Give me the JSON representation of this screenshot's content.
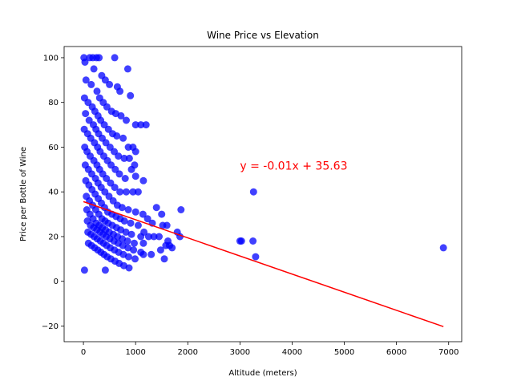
{
  "chart_data": {
    "type": "scatter",
    "title": "Wine Price vs Elevation",
    "xlabel": "Altitude (meters)",
    "ylabel": "Price per Bottle of Wine",
    "xlim": [
      -370,
      7250
    ],
    "ylim": [
      -27,
      105
    ],
    "xticks": [
      0,
      1000,
      2000,
      3000,
      4000,
      5000,
      6000,
      7000
    ],
    "xtick_labels": [
      "0",
      "1000",
      "2000",
      "3000",
      "4000",
      "5000",
      "6000",
      "7000"
    ],
    "yticks": [
      -20,
      0,
      20,
      40,
      60,
      80,
      100
    ],
    "ytick_labels": [
      "−20",
      "0",
      "20",
      "40",
      "60",
      "80",
      "100"
    ],
    "grid": false,
    "point_color": "#0000ff",
    "line_color": "#ff0000",
    "annotation": {
      "text": "y = -0.01x + 35.63",
      "x": 3000,
      "y": 50,
      "color": "#ff0000"
    },
    "regression": {
      "slope": -0.0081,
      "intercept": 35.63,
      "x_range": [
        0,
        6900
      ]
    },
    "points": [
      [
        10,
        100
      ],
      [
        120,
        100
      ],
      [
        180,
        100
      ],
      [
        250,
        100
      ],
      [
        300,
        100
      ],
      [
        600,
        100
      ],
      [
        850,
        95
      ],
      [
        30,
        98
      ],
      [
        200,
        95
      ],
      [
        350,
        92
      ],
      [
        420,
        90
      ],
      [
        500,
        88
      ],
      [
        650,
        87
      ],
      [
        700,
        85
      ],
      [
        900,
        83
      ],
      [
        50,
        90
      ],
      [
        150,
        88
      ],
      [
        260,
        85
      ],
      [
        310,
        82
      ],
      [
        380,
        80
      ],
      [
        450,
        78
      ],
      [
        540,
        76
      ],
      [
        620,
        75
      ],
      [
        720,
        74
      ],
      [
        820,
        72
      ],
      [
        1100,
        70
      ],
      [
        1200,
        70
      ],
      [
        1000,
        70
      ],
      [
        20,
        82
      ],
      [
        90,
        80
      ],
      [
        170,
        78
      ],
      [
        220,
        76
      ],
      [
        280,
        74
      ],
      [
        330,
        72
      ],
      [
        400,
        70
      ],
      [
        480,
        68
      ],
      [
        560,
        66
      ],
      [
        640,
        65
      ],
      [
        760,
        64
      ],
      [
        860,
        60
      ],
      [
        950,
        60
      ],
      [
        1000,
        58
      ],
      [
        40,
        75
      ],
      [
        110,
        72
      ],
      [
        190,
        70
      ],
      [
        240,
        68
      ],
      [
        290,
        66
      ],
      [
        360,
        64
      ],
      [
        430,
        62
      ],
      [
        510,
        60
      ],
      [
        590,
        58
      ],
      [
        670,
        56
      ],
      [
        780,
        55
      ],
      [
        880,
        55
      ],
      [
        980,
        52
      ],
      [
        920,
        50
      ],
      [
        15,
        68
      ],
      [
        80,
        66
      ],
      [
        140,
        64
      ],
      [
        210,
        62
      ],
      [
        270,
        60
      ],
      [
        320,
        58
      ],
      [
        390,
        56
      ],
      [
        460,
        54
      ],
      [
        530,
        52
      ],
      [
        610,
        50
      ],
      [
        690,
        48
      ],
      [
        800,
        46
      ],
      [
        1000,
        47
      ],
      [
        1150,
        45
      ],
      [
        25,
        60
      ],
      [
        70,
        58
      ],
      [
        130,
        56
      ],
      [
        200,
        54
      ],
      [
        260,
        52
      ],
      [
        310,
        50
      ],
      [
        370,
        48
      ],
      [
        440,
        46
      ],
      [
        520,
        44
      ],
      [
        600,
        42
      ],
      [
        700,
        40
      ],
      [
        820,
        40
      ],
      [
        950,
        40
      ],
      [
        1050,
        40
      ],
      [
        35,
        52
      ],
      [
        95,
        50
      ],
      [
        160,
        48
      ],
      [
        230,
        46
      ],
      [
        280,
        44
      ],
      [
        340,
        42
      ],
      [
        410,
        40
      ],
      [
        490,
        38
      ],
      [
        570,
        36
      ],
      [
        650,
        34
      ],
      [
        740,
        33
      ],
      [
        860,
        32
      ],
      [
        1000,
        31
      ],
      [
        1140,
        30
      ],
      [
        45,
        45
      ],
      [
        105,
        43
      ],
      [
        165,
        41
      ],
      [
        225,
        39
      ],
      [
        285,
        37
      ],
      [
        345,
        35
      ],
      [
        405,
        33
      ],
      [
        465,
        31
      ],
      [
        545,
        30
      ],
      [
        625,
        29
      ],
      [
        705,
        28
      ],
      [
        785,
        27
      ],
      [
        905,
        26
      ],
      [
        1050,
        25
      ],
      [
        55,
        38
      ],
      [
        115,
        36
      ],
      [
        175,
        34
      ],
      [
        235,
        32
      ],
      [
        295,
        30
      ],
      [
        355,
        28
      ],
      [
        415,
        27
      ],
      [
        475,
        26
      ],
      [
        555,
        25
      ],
      [
        635,
        24
      ],
      [
        715,
        23
      ],
      [
        815,
        22
      ],
      [
        920,
        21
      ],
      [
        1100,
        20
      ],
      [
        65,
        32
      ],
      [
        125,
        30
      ],
      [
        185,
        28
      ],
      [
        245,
        26
      ],
      [
        305,
        25
      ],
      [
        365,
        24
      ],
      [
        425,
        23
      ],
      [
        495,
        22
      ],
      [
        575,
        21
      ],
      [
        655,
        20
      ],
      [
        745,
        19
      ],
      [
        845,
        18
      ],
      [
        975,
        17
      ],
      [
        1150,
        17
      ],
      [
        75,
        27
      ],
      [
        135,
        25
      ],
      [
        195,
        24
      ],
      [
        255,
        23
      ],
      [
        315,
        22
      ],
      [
        375,
        21
      ],
      [
        435,
        20
      ],
      [
        505,
        19
      ],
      [
        585,
        18
      ],
      [
        665,
        17
      ],
      [
        755,
        16
      ],
      [
        855,
        15
      ],
      [
        960,
        14
      ],
      [
        1100,
        13
      ],
      [
        85,
        22
      ],
      [
        145,
        21
      ],
      [
        205,
        20
      ],
      [
        265,
        19
      ],
      [
        325,
        18
      ],
      [
        385,
        17
      ],
      [
        445,
        16
      ],
      [
        515,
        15
      ],
      [
        595,
        14
      ],
      [
        675,
        13
      ],
      [
        765,
        12
      ],
      [
        865,
        11
      ],
      [
        990,
        10
      ],
      [
        1150,
        12
      ],
      [
        95,
        17
      ],
      [
        155,
        16
      ],
      [
        215,
        15
      ],
      [
        275,
        14
      ],
      [
        335,
        13
      ],
      [
        395,
        12
      ],
      [
        455,
        11
      ],
      [
        525,
        10
      ],
      [
        605,
        9
      ],
      [
        685,
        8
      ],
      [
        775,
        7
      ],
      [
        875,
        6
      ],
      [
        420,
        5
      ],
      [
        20,
        5
      ],
      [
        1250,
        20
      ],
      [
        1300,
        12
      ],
      [
        1350,
        20
      ],
      [
        1400,
        33
      ],
      [
        1450,
        20
      ],
      [
        1500,
        30
      ],
      [
        1520,
        25
      ],
      [
        1550,
        10
      ],
      [
        1580,
        16
      ],
      [
        1600,
        25
      ],
      [
        1620,
        18
      ],
      [
        1650,
        16
      ],
      [
        1700,
        15
      ],
      [
        1800,
        22
      ],
      [
        1850,
        20
      ],
      [
        1870,
        32
      ],
      [
        1230,
        28
      ],
      [
        1160,
        22
      ],
      [
        1320,
        26
      ],
      [
        1480,
        14
      ],
      [
        3000,
        18
      ],
      [
        3030,
        18
      ],
      [
        3260,
        40
      ],
      [
        3250,
        18
      ],
      [
        3300,
        11
      ],
      [
        6900,
        15
      ]
    ]
  }
}
